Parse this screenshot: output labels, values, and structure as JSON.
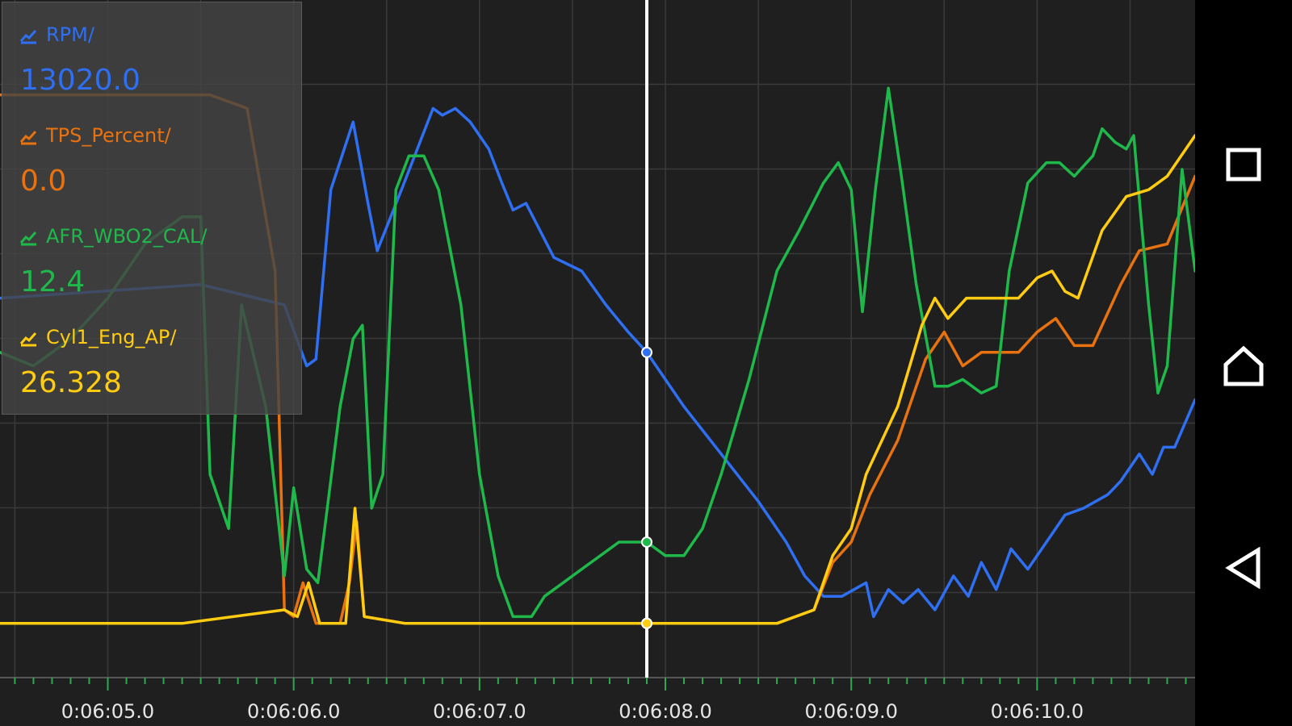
{
  "chart_data": {
    "type": "line",
    "x_label_format": "0:06:SS.S",
    "xlim": [
      4.42,
      10.85
    ],
    "ylim": [
      0,
      1
    ],
    "x_ticks": [
      "0:06:05.0",
      "0:06:06.0",
      "0:06:07.0",
      "0:06:08.0",
      "0:06:09.0",
      "0:06:10.0"
    ],
    "x_tick_values": [
      5.0,
      6.0,
      7.0,
      8.0,
      9.0,
      10.0
    ],
    "cursor_x": 7.9,
    "grid": true,
    "series": [
      {
        "name": "RPM/",
        "value": "13020.0",
        "color": "#2f6ff2",
        "points": [
          [
            4.42,
            0.56
          ],
          [
            5.5,
            0.58
          ],
          [
            5.95,
            0.55
          ],
          [
            6.07,
            0.46
          ],
          [
            6.12,
            0.47
          ],
          [
            6.2,
            0.72
          ],
          [
            6.32,
            0.82
          ],
          [
            6.4,
            0.7
          ],
          [
            6.45,
            0.63
          ],
          [
            6.58,
            0.72
          ],
          [
            6.75,
            0.84
          ],
          [
            6.8,
            0.83
          ],
          [
            6.87,
            0.84
          ],
          [
            6.95,
            0.82
          ],
          [
            7.05,
            0.78
          ],
          [
            7.12,
            0.73
          ],
          [
            7.18,
            0.69
          ],
          [
            7.25,
            0.7
          ],
          [
            7.4,
            0.62
          ],
          [
            7.55,
            0.6
          ],
          [
            7.68,
            0.55
          ],
          [
            7.8,
            0.51
          ],
          [
            7.9,
            0.48
          ],
          [
            8.1,
            0.4
          ],
          [
            8.3,
            0.33
          ],
          [
            8.5,
            0.26
          ],
          [
            8.65,
            0.2
          ],
          [
            8.75,
            0.15
          ],
          [
            8.85,
            0.12
          ],
          [
            8.95,
            0.12
          ],
          [
            9.08,
            0.14
          ],
          [
            9.12,
            0.09
          ],
          [
            9.2,
            0.13
          ],
          [
            9.28,
            0.11
          ],
          [
            9.36,
            0.13
          ],
          [
            9.45,
            0.1
          ],
          [
            9.55,
            0.15
          ],
          [
            9.63,
            0.12
          ],
          [
            9.7,
            0.17
          ],
          [
            9.78,
            0.13
          ],
          [
            9.86,
            0.19
          ],
          [
            9.95,
            0.16
          ],
          [
            10.05,
            0.2
          ],
          [
            10.15,
            0.24
          ],
          [
            10.25,
            0.25
          ],
          [
            10.38,
            0.27
          ],
          [
            10.45,
            0.29
          ],
          [
            10.55,
            0.33
          ],
          [
            10.62,
            0.3
          ],
          [
            10.68,
            0.34
          ],
          [
            10.74,
            0.34
          ],
          [
            10.85,
            0.41
          ]
        ]
      },
      {
        "name": "TPS_Percent/",
        "value": "0.0",
        "color": "#e8720f",
        "points": [
          [
            4.42,
            0.86
          ],
          [
            5.1,
            0.86
          ],
          [
            5.55,
            0.86
          ],
          [
            5.75,
            0.84
          ],
          [
            5.9,
            0.6
          ],
          [
            5.95,
            0.1
          ],
          [
            6.0,
            0.09
          ],
          [
            6.05,
            0.14
          ],
          [
            6.12,
            0.08
          ],
          [
            6.25,
            0.08
          ],
          [
            6.3,
            0.14
          ],
          [
            6.34,
            0.23
          ],
          [
            6.38,
            0.09
          ],
          [
            6.6,
            0.08
          ],
          [
            7.5,
            0.08
          ],
          [
            7.9,
            0.08
          ],
          [
            8.6,
            0.08
          ],
          [
            8.8,
            0.1
          ],
          [
            8.9,
            0.17
          ],
          [
            9.0,
            0.2
          ],
          [
            9.1,
            0.27
          ],
          [
            9.25,
            0.35
          ],
          [
            9.4,
            0.47
          ],
          [
            9.5,
            0.51
          ],
          [
            9.6,
            0.46
          ],
          [
            9.7,
            0.48
          ],
          [
            9.9,
            0.48
          ],
          [
            10.0,
            0.51
          ],
          [
            10.1,
            0.53
          ],
          [
            10.2,
            0.49
          ],
          [
            10.3,
            0.49
          ],
          [
            10.45,
            0.58
          ],
          [
            10.55,
            0.63
          ],
          [
            10.7,
            0.64
          ],
          [
            10.85,
            0.74
          ]
        ]
      },
      {
        "name": "AFR_WBO2_CAL/",
        "value": "12.4",
        "color": "#1fb94b",
        "points": [
          [
            4.42,
            0.48
          ],
          [
            4.6,
            0.46
          ],
          [
            4.8,
            0.5
          ],
          [
            5.0,
            0.56
          ],
          [
            5.2,
            0.64
          ],
          [
            5.4,
            0.68
          ],
          [
            5.5,
            0.68
          ],
          [
            5.55,
            0.3
          ],
          [
            5.65,
            0.22
          ],
          [
            5.72,
            0.55
          ],
          [
            5.85,
            0.4
          ],
          [
            5.95,
            0.15
          ],
          [
            6.0,
            0.28
          ],
          [
            6.07,
            0.16
          ],
          [
            6.13,
            0.14
          ],
          [
            6.25,
            0.4
          ],
          [
            6.32,
            0.5
          ],
          [
            6.37,
            0.52
          ],
          [
            6.42,
            0.25
          ],
          [
            6.48,
            0.3
          ],
          [
            6.55,
            0.72
          ],
          [
            6.62,
            0.77
          ],
          [
            6.7,
            0.77
          ],
          [
            6.78,
            0.72
          ],
          [
            6.9,
            0.55
          ],
          [
            7.0,
            0.3
          ],
          [
            7.1,
            0.15
          ],
          [
            7.18,
            0.09
          ],
          [
            7.28,
            0.09
          ],
          [
            7.35,
            0.12
          ],
          [
            7.45,
            0.14
          ],
          [
            7.55,
            0.16
          ],
          [
            7.65,
            0.18
          ],
          [
            7.75,
            0.2
          ],
          [
            7.9,
            0.2
          ],
          [
            8.0,
            0.18
          ],
          [
            8.1,
            0.18
          ],
          [
            8.2,
            0.22
          ],
          [
            8.3,
            0.3
          ],
          [
            8.45,
            0.44
          ],
          [
            8.6,
            0.6
          ],
          [
            8.72,
            0.66
          ],
          [
            8.85,
            0.73
          ],
          [
            8.93,
            0.76
          ],
          [
            9.0,
            0.72
          ],
          [
            9.06,
            0.54
          ],
          [
            9.13,
            0.72
          ],
          [
            9.2,
            0.87
          ],
          [
            9.27,
            0.74
          ],
          [
            9.35,
            0.58
          ],
          [
            9.45,
            0.43
          ],
          [
            9.52,
            0.43
          ],
          [
            9.6,
            0.44
          ],
          [
            9.7,
            0.42
          ],
          [
            9.78,
            0.43
          ],
          [
            9.85,
            0.6
          ],
          [
            9.95,
            0.73
          ],
          [
            10.05,
            0.76
          ],
          [
            10.12,
            0.76
          ],
          [
            10.2,
            0.74
          ],
          [
            10.3,
            0.77
          ],
          [
            10.35,
            0.81
          ],
          [
            10.42,
            0.79
          ],
          [
            10.48,
            0.78
          ],
          [
            10.52,
            0.8
          ],
          [
            10.6,
            0.55
          ],
          [
            10.65,
            0.42
          ],
          [
            10.7,
            0.46
          ],
          [
            10.78,
            0.75
          ],
          [
            10.85,
            0.6
          ]
        ]
      },
      {
        "name": "Cyl1_Eng_AP/",
        "value": "26.328",
        "color": "#ffcc11",
        "points": [
          [
            4.42,
            0.08
          ],
          [
            5.4,
            0.08
          ],
          [
            5.95,
            0.1
          ],
          [
            6.02,
            0.09
          ],
          [
            6.08,
            0.14
          ],
          [
            6.14,
            0.08
          ],
          [
            6.28,
            0.08
          ],
          [
            6.33,
            0.25
          ],
          [
            6.38,
            0.09
          ],
          [
            6.6,
            0.08
          ],
          [
            7.5,
            0.08
          ],
          [
            7.9,
            0.08
          ],
          [
            8.6,
            0.08
          ],
          [
            8.8,
            0.1
          ],
          [
            8.9,
            0.18
          ],
          [
            9.0,
            0.22
          ],
          [
            9.08,
            0.3
          ],
          [
            9.25,
            0.4
          ],
          [
            9.38,
            0.52
          ],
          [
            9.45,
            0.56
          ],
          [
            9.52,
            0.53
          ],
          [
            9.62,
            0.56
          ],
          [
            9.75,
            0.56
          ],
          [
            9.9,
            0.56
          ],
          [
            10.0,
            0.59
          ],
          [
            10.08,
            0.6
          ],
          [
            10.15,
            0.57
          ],
          [
            10.22,
            0.56
          ],
          [
            10.35,
            0.66
          ],
          [
            10.48,
            0.71
          ],
          [
            10.6,
            0.72
          ],
          [
            10.7,
            0.74
          ],
          [
            10.85,
            0.8
          ]
        ]
      }
    ]
  },
  "navbar": {
    "icons": [
      "recents-square-icon",
      "home-icon",
      "back-triangle-icon"
    ]
  }
}
